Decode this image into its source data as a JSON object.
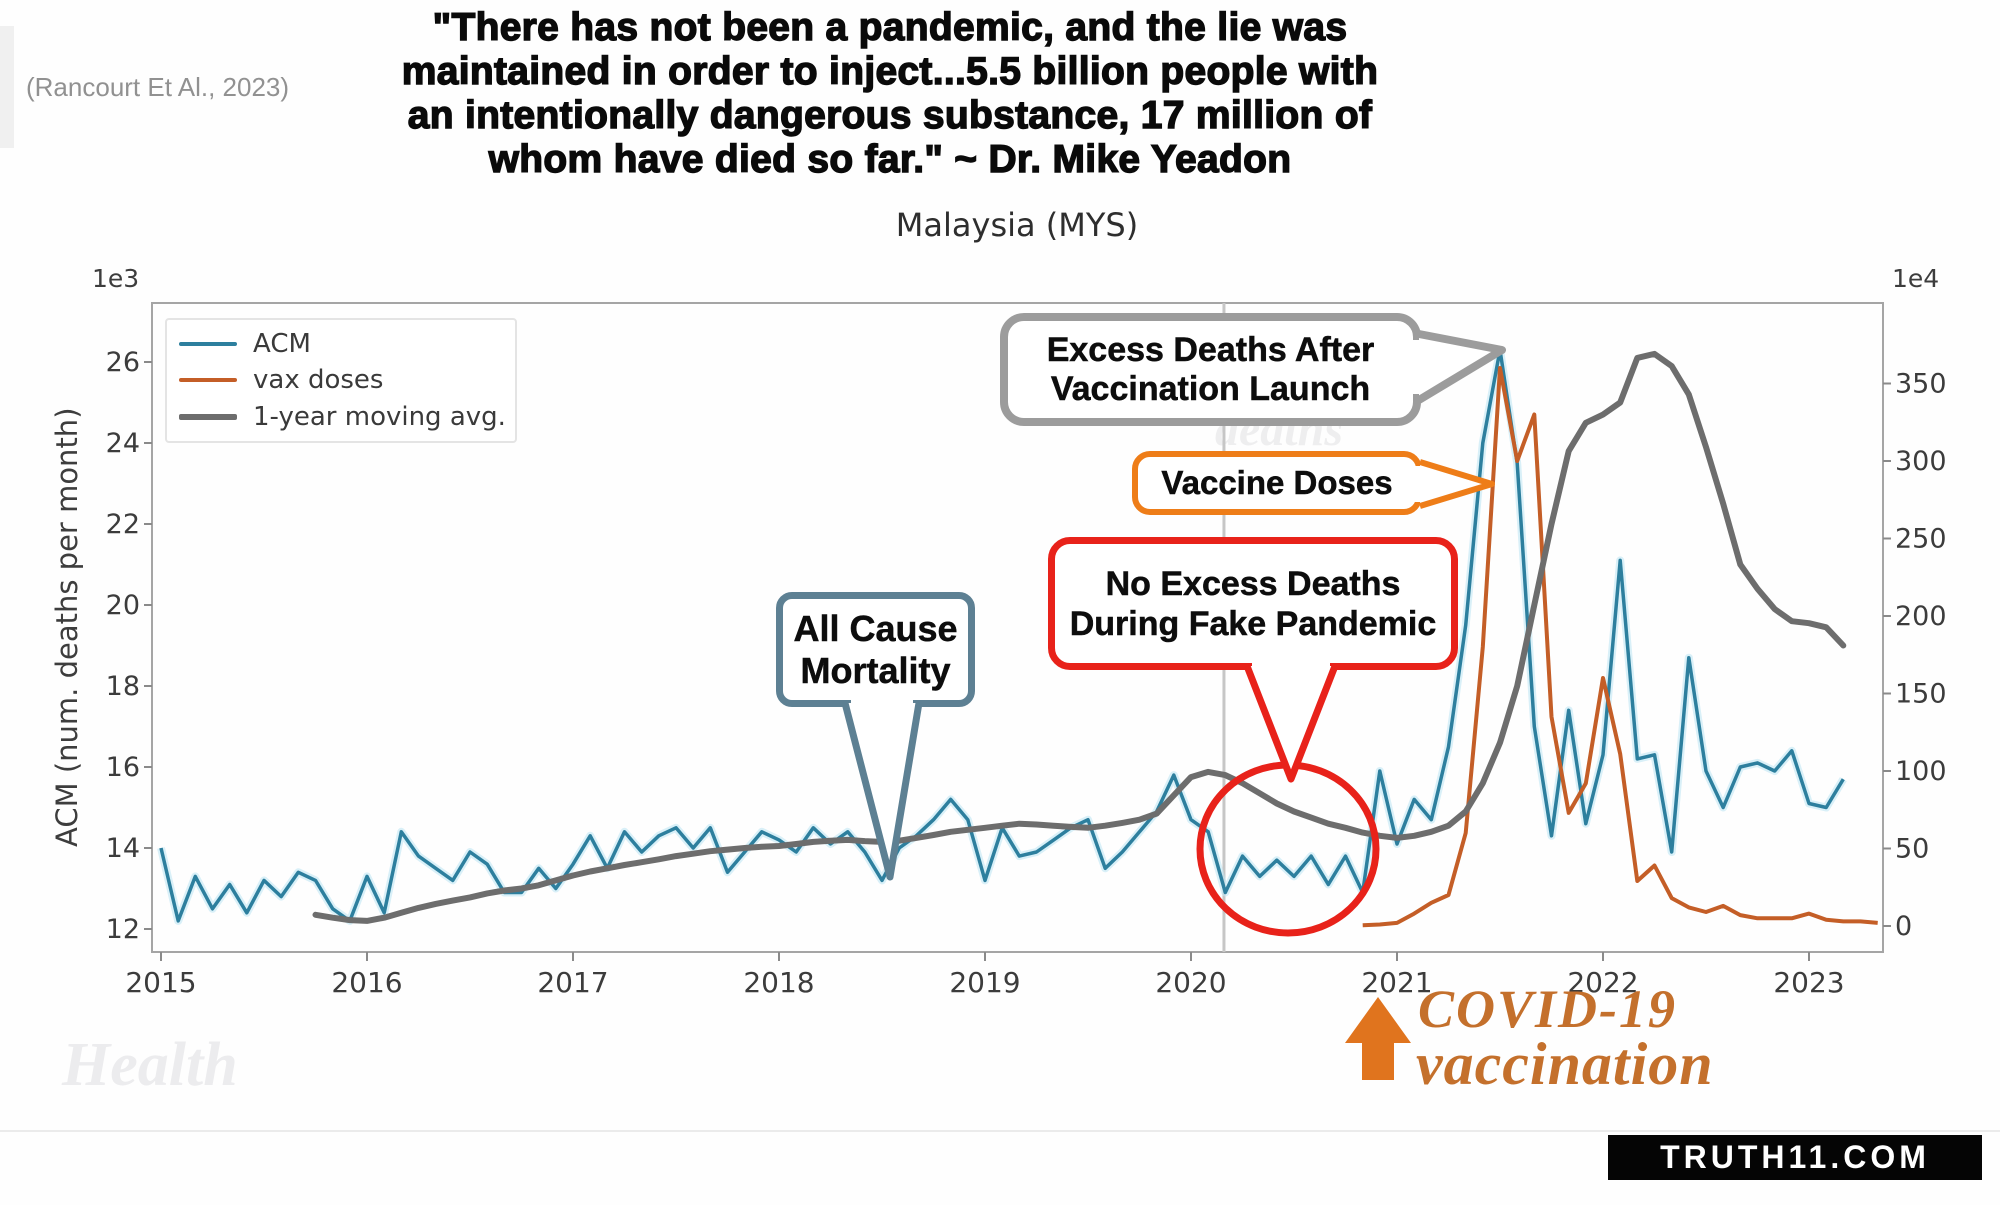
{
  "header": {
    "citation": "(Rancourt Et Al., 2023)",
    "quote_lines": [
      "\"There has not been a pandemic, and the lie was",
      "maintained in order to inject...5.5 billion people with",
      "an intentionally dangerous substance, 17 million of",
      "whom have died so far.\" ~ Dr. Mike Yeadon"
    ]
  },
  "chart_data": {
    "type": "line",
    "title": "Malaysia (MYS)",
    "ylabel": "ACM (num. deaths per month)",
    "left_axis": {
      "multiplier": "1e3",
      "ticks": [
        12,
        14,
        16,
        18,
        20,
        22,
        24,
        26
      ]
    },
    "right_axis": {
      "multiplier": "1e4",
      "ticks": [
        0,
        50,
        100,
        150,
        200,
        250,
        300,
        350
      ]
    },
    "x_axis": {
      "ticks": [
        2015,
        2016,
        2017,
        2018,
        2019,
        2020,
        2021,
        2022,
        2023
      ]
    },
    "grid": false,
    "legend_position": "upper-left",
    "pandemic_start_line_x": 2020.16,
    "series": [
      {
        "name": "ACM",
        "axis": "left",
        "color": "#2d7f9e",
        "halo_color": "#bfe6f4",
        "x_start": 2015.0,
        "x_step": 0.083333,
        "y": [
          14.0,
          12.2,
          13.3,
          12.5,
          13.1,
          12.4,
          13.2,
          12.8,
          13.4,
          13.2,
          12.5,
          12.2,
          13.3,
          12.4,
          14.4,
          13.8,
          13.5,
          13.2,
          13.9,
          13.6,
          12.9,
          12.9,
          13.5,
          13.0,
          13.6,
          14.3,
          13.5,
          14.4,
          13.9,
          14.3,
          14.5,
          14.0,
          14.5,
          13.4,
          13.9,
          14.4,
          14.2,
          13.9,
          14.5,
          14.1,
          14.4,
          13.9,
          13.2,
          14.0,
          14.3,
          14.7,
          15.2,
          14.7,
          13.2,
          14.5,
          13.8,
          13.9,
          14.2,
          14.5,
          14.7,
          13.5,
          13.9,
          14.4,
          14.9,
          15.8,
          14.7,
          14.4,
          12.9,
          13.8,
          13.3,
          13.7,
          13.3,
          13.8,
          13.1,
          13.8,
          12.9,
          15.9,
          14.1,
          15.2,
          14.7,
          16.5,
          19.5,
          24.0,
          26.3,
          23.5,
          17.0,
          14.3,
          17.4,
          14.6,
          16.3,
          21.1,
          16.2,
          16.3,
          13.9,
          18.7,
          15.9,
          15.0,
          16.0,
          16.1,
          15.9,
          16.4,
          15.1,
          15.0,
          15.7
        ]
      },
      {
        "name": "vax doses",
        "axis": "right",
        "color": "#c45e27",
        "x_start": 2020.8333,
        "x_step": 0.083333,
        "y": [
          0.5,
          1,
          2,
          8,
          15,
          20,
          60,
          180,
          360,
          300,
          330,
          135,
          73,
          92,
          160,
          111,
          29,
          39,
          18,
          12,
          9,
          13,
          7,
          5,
          5,
          5,
          8,
          4,
          3,
          3,
          2
        ]
      },
      {
        "name": "1-year moving avg.",
        "axis": "left",
        "color": "#6d6d6d",
        "x_start": 2015.75,
        "x_step": 0.083333,
        "y": [
          12.35,
          12.28,
          12.22,
          12.2,
          12.28,
          12.4,
          12.52,
          12.62,
          12.7,
          12.78,
          12.88,
          12.95,
          13.0,
          13.08,
          13.2,
          13.32,
          13.42,
          13.5,
          13.58,
          13.65,
          13.72,
          13.8,
          13.86,
          13.92,
          13.96,
          14.0,
          14.03,
          14.05,
          14.1,
          14.15,
          14.18,
          14.2,
          14.17,
          14.15,
          14.18,
          14.25,
          14.32,
          14.4,
          14.45,
          14.5,
          14.55,
          14.6,
          14.58,
          14.55,
          14.52,
          14.5,
          14.55,
          14.62,
          14.7,
          14.85,
          15.3,
          15.75,
          15.88,
          15.8,
          15.6,
          15.35,
          15.1,
          14.9,
          14.75,
          14.6,
          14.5,
          14.38,
          14.3,
          14.25,
          14.3,
          14.4,
          14.55,
          14.9,
          15.6,
          16.6,
          18.0,
          20.0,
          22.0,
          23.8,
          24.5,
          24.7,
          25.0,
          26.1,
          26.2,
          25.9,
          25.2,
          23.9,
          22.5,
          21.0,
          20.4,
          19.9,
          19.6,
          19.55,
          19.45,
          19.0
        ]
      }
    ]
  },
  "annotations": {
    "excess_box": {
      "line1": "Excess Deaths After",
      "line2": "Vaccination Launch",
      "color": "#9c9c9c"
    },
    "vaccine_box": {
      "label": "Vaccine Doses",
      "color": "#ee7d18"
    },
    "noexcess_box": {
      "line1": "No Excess Deaths",
      "line2": "During Fake Pandemic",
      "color": "#e8221a"
    },
    "acm_box": {
      "line1": "All Cause",
      "line2": "Mortality",
      "color": "#5d8093"
    },
    "circle_color": "#e8221a",
    "covid_vax": {
      "line1": "COVID-19",
      "line2": "vaccination",
      "arrow_color": "#e0741e",
      "text_color": "#c4702c"
    }
  },
  "watermarks": {
    "health": "Health",
    "ghost1": "excess",
    "ghost2": "deaths"
  },
  "footer": {
    "brand": "TRUTH11.COM"
  }
}
